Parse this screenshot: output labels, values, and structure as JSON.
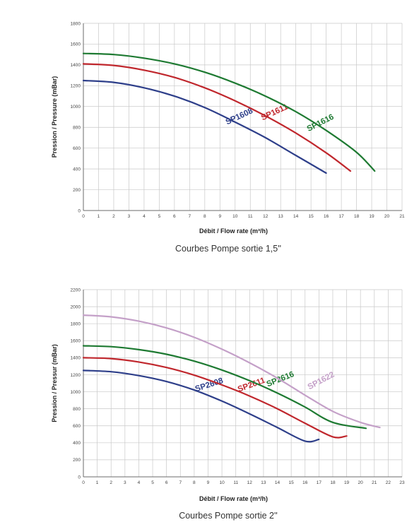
{
  "chart_data": [
    {
      "type": "line",
      "title": "Courbes Pompe sortie 1,5''",
      "xlabel": "Débit / Flow rate (m³/h)",
      "ylabel": "Pression / Pressure (mBar)",
      "xlim": [
        0,
        21
      ],
      "ylim": [
        0,
        1800
      ],
      "xticks": [
        "0",
        "1",
        "2",
        "3",
        "4",
        "5",
        "6",
        "7",
        "8",
        "9",
        "10",
        "11",
        "12",
        "13",
        "14",
        "15",
        "16",
        "17",
        "18",
        "19",
        "20",
        "21"
      ],
      "yticks": [
        "0",
        "200",
        "400",
        "600",
        "800",
        "1000",
        "1200",
        "1400",
        "1600",
        "1800"
      ],
      "grid": true,
      "series": [
        {
          "name": "SP1608",
          "color": "#2e3f8a",
          "x": [
            0,
            2,
            4,
            6,
            8,
            10,
            12,
            14,
            16
          ],
          "y": [
            1250,
            1232,
            1180,
            1100,
            990,
            850,
            700,
            530,
            360
          ]
        },
        {
          "name": "SP1611",
          "color": "#c0272d",
          "x": [
            0,
            2,
            4,
            6,
            8,
            10,
            12,
            14,
            16,
            17.6
          ],
          "y": [
            1410,
            1395,
            1350,
            1280,
            1180,
            1055,
            910,
            745,
            555,
            380
          ]
        },
        {
          "name": "SP1616",
          "color": "#1e7a32",
          "x": [
            0,
            2,
            4,
            6,
            8,
            10,
            12,
            14,
            16,
            18,
            19.2
          ],
          "y": [
            1510,
            1500,
            1465,
            1410,
            1330,
            1225,
            1100,
            950,
            770,
            560,
            380
          ]
        }
      ]
    },
    {
      "type": "line",
      "title": "Courbes Pompe sortie 2''",
      "xlabel": "Débit / Flow rate (m³/h)",
      "ylabel": "Pression / Pressur (mBar)",
      "xlim": [
        0,
        23
      ],
      "ylim": [
        0,
        2200
      ],
      "xticks": [
        "0",
        "1",
        "2",
        "3",
        "4",
        "5",
        "6",
        "7",
        "8",
        "9",
        "10",
        "11",
        "12",
        "13",
        "14",
        "15",
        "16",
        "17",
        "18",
        "19",
        "20",
        "21",
        "22",
        "23"
      ],
      "yticks": [
        "0",
        "200",
        "400",
        "600",
        "800",
        "1000",
        "1200",
        "1400",
        "1600",
        "1800",
        "2000",
        "2200"
      ],
      "grid": true,
      "series": [
        {
          "name": "SP2608",
          "color": "#2e3f8a",
          "x": [
            0,
            2,
            4,
            6,
            8,
            10,
            12,
            14,
            16,
            17
          ],
          "y": [
            1250,
            1235,
            1190,
            1120,
            1020,
            890,
            740,
            580,
            420,
            440
          ]
        },
        {
          "name": "SP2611",
          "color": "#c0272d",
          "x": [
            0,
            2,
            4,
            6,
            8,
            10,
            12,
            14,
            16,
            18,
            19
          ],
          "y": [
            1400,
            1390,
            1350,
            1285,
            1195,
            1080,
            950,
            800,
            630,
            470,
            480
          ]
        },
        {
          "name": "SP2616",
          "color": "#1e7a32",
          "x": [
            0,
            2,
            4,
            6,
            8,
            10,
            12,
            14,
            16,
            18,
            20.4
          ],
          "y": [
            1540,
            1530,
            1495,
            1440,
            1360,
            1255,
            1130,
            985,
            820,
            640,
            570
          ]
        },
        {
          "name": "SP1622",
          "color": "#c4a0c8",
          "x": [
            0,
            2,
            4,
            6,
            8,
            10,
            12,
            14,
            16,
            18,
            20,
            21.4
          ],
          "y": [
            1900,
            1880,
            1830,
            1750,
            1640,
            1500,
            1340,
            1160,
            960,
            770,
            640,
            580
          ]
        }
      ]
    }
  ]
}
